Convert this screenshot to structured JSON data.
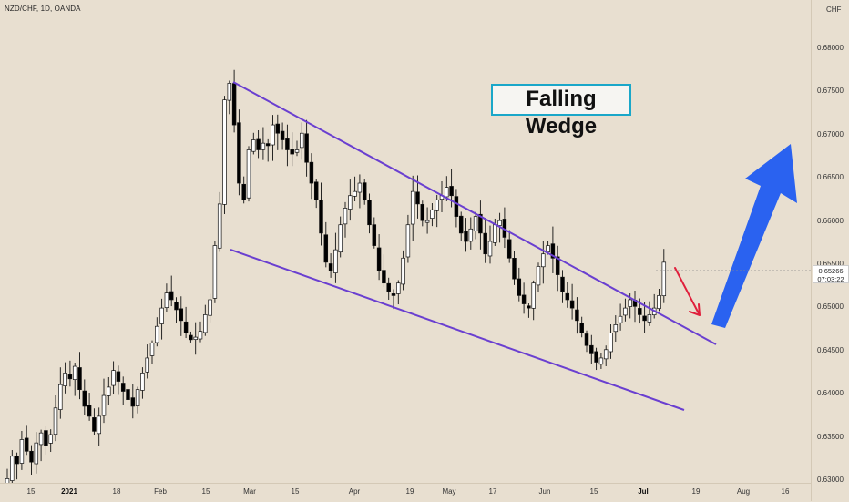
{
  "header": {
    "title": "NZD/CHF, 1D, OANDA"
  },
  "price_axis": {
    "currency": "CHF",
    "ticks": [
      "0.68000",
      "0.67500",
      "0.67000",
      "0.66500",
      "0.66000",
      "0.65500",
      "0.65000",
      "0.64500",
      "0.64000",
      "0.63500",
      "0.63000"
    ],
    "current_price": "0.65266",
    "countdown": "07:03:22"
  },
  "time_axis": {
    "labels": [
      {
        "text": "15",
        "major": false
      },
      {
        "text": "2021",
        "major": true
      },
      {
        "text": "18",
        "major": false
      },
      {
        "text": "Feb",
        "major": false
      },
      {
        "text": "15",
        "major": false
      },
      {
        "text": "Mar",
        "major": false
      },
      {
        "text": "15",
        "major": false
      },
      {
        "text": "Apr",
        "major": false
      },
      {
        "text": "19",
        "major": false
      },
      {
        "text": "May",
        "major": false
      },
      {
        "text": "17",
        "major": false
      },
      {
        "text": "Jun",
        "major": false
      },
      {
        "text": "15",
        "major": false
      },
      {
        "text": "Jul",
        "major": true
      },
      {
        "text": "19",
        "major": false
      },
      {
        "text": "Aug",
        "major": false
      },
      {
        "text": "16",
        "major": false
      }
    ]
  },
  "annotation": {
    "text": "Falling Wedge"
  },
  "colors": {
    "background": "#e8dfd0",
    "candle": "#000000",
    "trendline": "#6a3fd0",
    "label_border": "#1aa7c9",
    "arrow_up": "#2a62f0",
    "arrow_small": "#e0203c"
  },
  "chart_data": {
    "type": "candlestick",
    "symbol": "NZD/CHF",
    "timeframe": "1D",
    "ylim": [
      0.626,
      0.684
    ],
    "grid": false,
    "trendlines": [
      {
        "name": "upper",
        "from": [
          0.6755
        ],
        "to": [
          0.644
        ]
      },
      {
        "name": "lower",
        "from": [
          0.6555
        ],
        "to": [
          0.636
        ]
      }
    ],
    "close_series": [
      0.6265,
      0.6292,
      0.6283,
      0.6312,
      0.6298,
      0.6285,
      0.6308,
      0.632,
      0.6305,
      0.6318,
      0.635,
      0.6378,
      0.6392,
      0.6385,
      0.64,
      0.6372,
      0.6352,
      0.634,
      0.6322,
      0.634,
      0.6365,
      0.6375,
      0.6395,
      0.6382,
      0.637,
      0.636,
      0.6352,
      0.6372,
      0.6392,
      0.641,
      0.6428,
      0.6448,
      0.647,
      0.6488,
      0.648,
      0.6468,
      0.6455,
      0.644,
      0.6432,
      0.6435,
      0.6442,
      0.6462,
      0.648,
      0.6545,
      0.6595,
      0.672,
      0.674,
      0.669,
      0.662,
      0.66,
      0.666,
      0.6672,
      0.666,
      0.6668,
      0.6665,
      0.669,
      0.668,
      0.6672,
      0.666,
      0.6655,
      0.666,
      0.668,
      0.6645,
      0.662,
      0.66,
      0.656,
      0.6525,
      0.6515,
      0.654,
      0.657,
      0.659,
      0.6605,
      0.661,
      0.662,
      0.66,
      0.657,
      0.6545,
      0.6515,
      0.65,
      0.649,
      0.6485,
      0.65,
      0.653,
      0.657,
      0.661,
      0.6595,
      0.6575,
      0.6575,
      0.6588,
      0.66,
      0.6605,
      0.6615,
      0.6605,
      0.658,
      0.656,
      0.655,
      0.6565,
      0.658,
      0.656,
      0.6535,
      0.655,
      0.657,
      0.6575,
      0.6555,
      0.653,
      0.6505,
      0.6485,
      0.6475,
      0.647,
      0.65,
      0.652,
      0.6535,
      0.6545,
      0.653,
      0.651,
      0.649,
      0.648,
      0.647,
      0.6455,
      0.644,
      0.6425,
      0.6415,
      0.6405,
      0.641,
      0.642,
      0.644,
      0.645,
      0.646,
      0.647,
      0.648,
      0.6472,
      0.6462,
      0.6455,
      0.6462,
      0.647,
      0.6485,
      0.6525
    ]
  }
}
